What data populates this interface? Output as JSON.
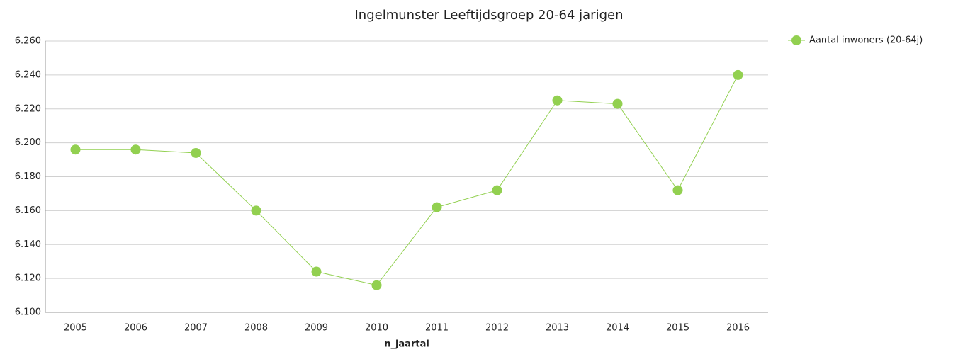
{
  "chart_data": {
    "type": "line",
    "title": "Ingelmunster  Leeftijdsgroep 20-64 jarigen",
    "x_label": "n_jaartal",
    "categories": [
      "2005",
      "2006",
      "2007",
      "2008",
      "2009",
      "2010",
      "2011",
      "2012",
      "2013",
      "2014",
      "2015",
      "2016"
    ],
    "series": [
      {
        "name": "Aantal inwoners  (20-64j)",
        "color": "#92d050",
        "values": [
          6196,
          6196,
          6194,
          6160,
          6124,
          6116,
          6162,
          6172,
          6225,
          6223,
          6172,
          6240
        ]
      }
    ],
    "ylim": [
      6100,
      6260
    ],
    "yticks": [
      {
        "value": 6100,
        "label": "6.100"
      },
      {
        "value": 6120,
        "label": "6.120"
      },
      {
        "value": 6140,
        "label": "6.140"
      },
      {
        "value": 6160,
        "label": "6.160"
      },
      {
        "value": 6180,
        "label": "6.180"
      },
      {
        "value": 6200,
        "label": "6.200"
      },
      {
        "value": 6220,
        "label": "6.220"
      },
      {
        "value": 6240,
        "label": "6.240"
      },
      {
        "value": 6260,
        "label": "6.260"
      }
    ],
    "grid": true,
    "legend": "top-right"
  }
}
